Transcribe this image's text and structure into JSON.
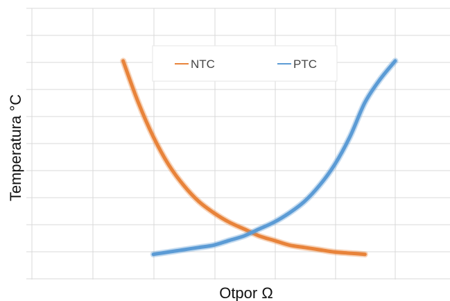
{
  "chart_data": {
    "type": "line",
    "title": "",
    "xlabel": "Otpor Ω",
    "ylabel": "Temperatura  °C",
    "grid": true,
    "legend_position": "top-center",
    "xlim": [
      0,
      100
    ],
    "ylim": [
      0,
      100
    ],
    "series": [
      {
        "name": "NTC",
        "color": "#e8833a",
        "x": [
          10,
          15,
          20,
          25,
          30,
          35,
          40,
          45,
          50,
          55,
          60,
          65,
          70,
          75,
          80,
          85,
          90
        ],
        "y": [
          88,
          70,
          55,
          43,
          34,
          27,
          22,
          18,
          15,
          12,
          10,
          8,
          7,
          6,
          5,
          4.5,
          4
        ]
      },
      {
        "name": "PTC",
        "color": "#5b9bd5",
        "x": [
          20,
          25,
          30,
          35,
          40,
          45,
          50,
          55,
          60,
          65,
          70,
          75,
          80,
          85,
          90,
          95,
          100
        ],
        "y": [
          4,
          5,
          6,
          7,
          8,
          10,
          12,
          15,
          18,
          22,
          27,
          34,
          43,
          55,
          70,
          80,
          88
        ]
      }
    ]
  }
}
